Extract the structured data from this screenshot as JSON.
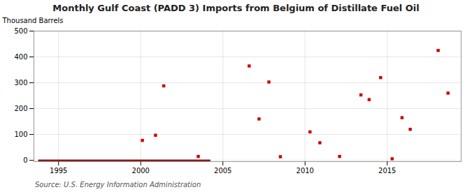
{
  "chart_data": {
    "type": "scatter",
    "title": "Monthly Gulf Coast (PADD 3) Imports from Belgium of Distillate Fuel Oil",
    "ylabel": "Thousand Barrels",
    "annotations": [
      "Source: U.S. Energy Information Administration"
    ],
    "xlim": [
      1993.5,
      2019.5
    ],
    "ylim": [
      -5,
      500
    ],
    "xticks": [
      1995,
      2000,
      2005,
      2010,
      2015
    ],
    "yticks": [
      0,
      100,
      200,
      300,
      400,
      500
    ],
    "grid": true,
    "series": [
      {
        "type": "line",
        "color": "#8b1a1a",
        "x": [
          1993.8,
          2004.2
        ],
        "values": [
          0,
          0
        ]
      },
      {
        "type": "scatter",
        "marker": "square",
        "color": "#cc0000",
        "x": [
          2000.1,
          2000.9,
          2001.4,
          2003.5,
          2006.6,
          2007.2,
          2007.8,
          2008.5,
          2010.3,
          2010.9,
          2012.1,
          2013.4,
          2013.9,
          2014.6,
          2015.3,
          2015.9,
          2016.4,
          2018.1,
          2018.7
        ],
        "values": [
          77,
          97,
          288,
          15,
          365,
          160,
          303,
          14,
          110,
          68,
          15,
          253,
          235,
          320,
          6,
          165,
          120,
          425,
          260
        ]
      }
    ]
  }
}
